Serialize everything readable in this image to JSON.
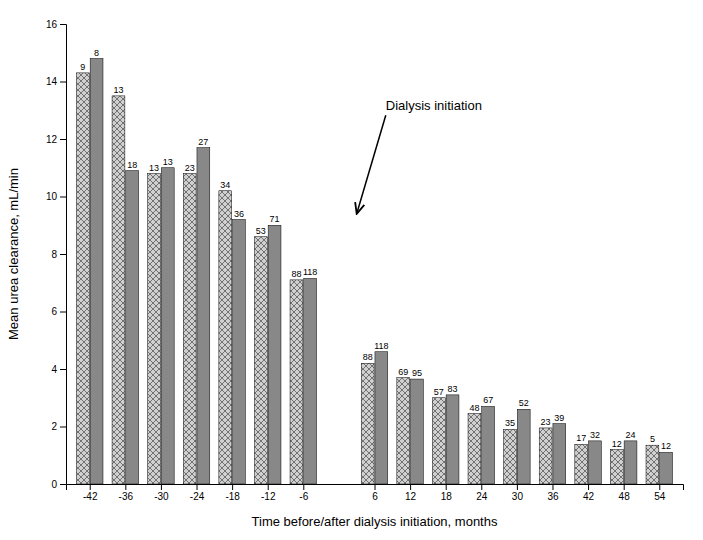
{
  "chart_data": {
    "type": "bar",
    "xlabel": "Time before/after dialysis initiation, months",
    "ylabel": "Mean urea clearance, mL/min",
    "x": [
      -42,
      -36,
      -30,
      -24,
      -18,
      -12,
      -6,
      6,
      12,
      18,
      24,
      30,
      36,
      42,
      48,
      54
    ],
    "series": [
      {
        "color": "#d0d0d0",
        "values": [
          14.3,
          13.5,
          10.8,
          10.8,
          10.2,
          8.6,
          7.1,
          4.2,
          3.7,
          3.0,
          2.45,
          1.9,
          1.95,
          1.38,
          1.2,
          1.35
        ],
        "n": [
          9,
          13,
          13,
          23,
          34,
          53,
          88,
          88,
          69,
          57,
          48,
          35,
          23,
          17,
          12,
          5
        ]
      },
      {
        "color": "#888888",
        "values": [
          14.8,
          10.9,
          11.0,
          11.7,
          9.2,
          9.0,
          7.15,
          4.6,
          3.65,
          3.1,
          2.7,
          2.6,
          2.1,
          1.5,
          1.5,
          1.1
        ],
        "n": [
          8,
          18,
          13,
          27,
          36,
          71,
          118,
          118,
          95,
          83,
          67,
          52,
          39,
          32,
          24,
          12
        ]
      }
    ],
    "xlim": [
      -46,
      58
    ],
    "xticks": [
      -42,
      -36,
      -30,
      -24,
      -18,
      -12,
      -6,
      6,
      12,
      18,
      24,
      30,
      36,
      42,
      48,
      54
    ],
    "ylim": [
      0,
      16
    ],
    "yticks": [
      0,
      2,
      4,
      6,
      8,
      10,
      12,
      14,
      16
    ],
    "grid": false,
    "annotations": [
      {
        "text": "Dialysis initiation",
        "x": 16,
        "y": 13.0,
        "arrow_x": 3,
        "arrow_y": 9.4
      }
    ]
  }
}
